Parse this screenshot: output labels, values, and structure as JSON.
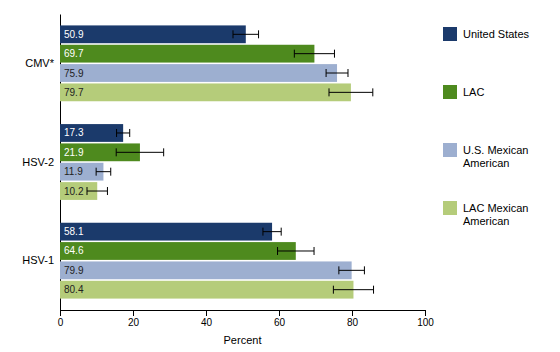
{
  "chart_data": {
    "type": "bar",
    "orientation": "horizontal",
    "categories": [
      "CMV*",
      "HSV-2",
      "HSV-1"
    ],
    "series": [
      {
        "name": "United States",
        "color": "#1b3a6b",
        "values": [
          50.9,
          17.3,
          58.1
        ],
        "errors": [
          3.5,
          1.8,
          2.5
        ]
      },
      {
        "name": "LAC",
        "color": "#4e8a1e",
        "values": [
          69.7,
          21.9,
          64.6
        ],
        "errors": [
          5.5,
          6.5,
          5.0
        ]
      },
      {
        "name": "U.S. Mexican\nAmerican",
        "color": "#9dafd0",
        "values": [
          75.9,
          11.9,
          79.9
        ],
        "errors": [
          3.0,
          2.0,
          3.5
        ]
      },
      {
        "name": "LAC Mexican\nAmerican",
        "color": "#b5cc7a",
        "values": [
          79.7,
          10.2,
          80.4
        ],
        "errors": [
          6.0,
          2.8,
          5.5
        ]
      }
    ],
    "xlabel": "Percent",
    "xlim": [
      0,
      100
    ],
    "xticks": [
      0,
      20,
      40,
      60,
      80,
      100
    ],
    "data_labels": true,
    "legend": "right",
    "grid": false
  }
}
